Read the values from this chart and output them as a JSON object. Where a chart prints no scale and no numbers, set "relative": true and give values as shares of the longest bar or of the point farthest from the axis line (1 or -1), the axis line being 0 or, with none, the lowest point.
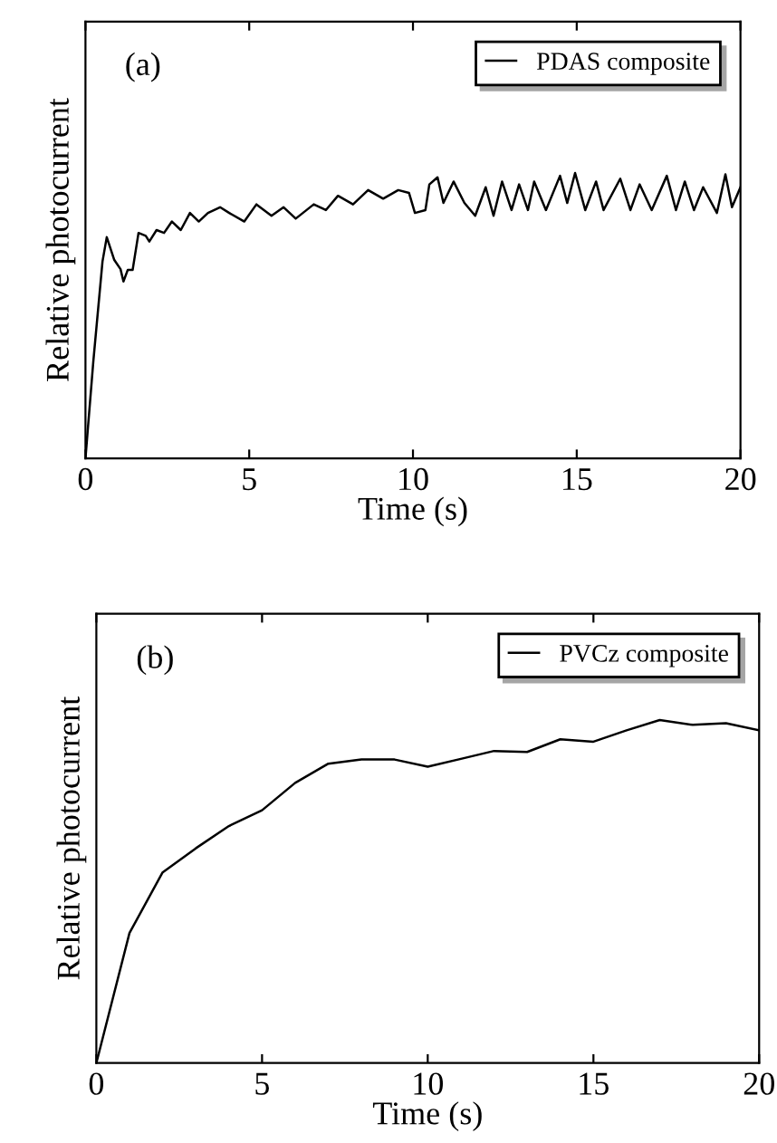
{
  "chart_data": [
    {
      "type": "line",
      "relative": true,
      "xlabel": "Time (s)",
      "ylabel": "Relative photocurrent",
      "annotations": [
        "(a)"
      ],
      "xlim": [
        0,
        20
      ],
      "xticks": [
        0,
        5,
        10,
        15,
        20
      ],
      "tick_labels": "x",
      "legend": "top right",
      "grid": false,
      "series": [
        {
          "name": "PDAS composite",
          "color": "#000000",
          "x": [
            0,
            0.24,
            0.52,
            0.65,
            0.88,
            1.07,
            1.16,
            1.29,
            1.44,
            1.62,
            1.84,
            1.95,
            2.17,
            2.4,
            2.64,
            2.91,
            3.19,
            3.46,
            3.74,
            4.11,
            4.39,
            4.85,
            5.22,
            5.68,
            6.05,
            6.42,
            6.97,
            7.34,
            7.71,
            8.17,
            8.63,
            9.09,
            9.55,
            9.88,
            10.06,
            10.38,
            10.5,
            10.75,
            10.93,
            11.24,
            11.57,
            11.9,
            12.22,
            12.46,
            12.72,
            13.01,
            13.24,
            13.51,
            13.7,
            14.06,
            14.49,
            14.71,
            14.95,
            15.26,
            15.59,
            15.82,
            16.33,
            16.64,
            16.92,
            17.29,
            17.75,
            18.03,
            18.3,
            18.58,
            18.86,
            19.28,
            19.54,
            19.74,
            20
          ],
          "values": [
            0,
            0.34,
            0.69,
            0.775,
            0.695,
            0.663,
            0.62,
            0.66,
            0.66,
            0.79,
            0.78,
            0.76,
            0.8,
            0.79,
            0.83,
            0.8,
            0.86,
            0.83,
            0.86,
            0.88,
            0.86,
            0.83,
            0.89,
            0.85,
            0.88,
            0.84,
            0.89,
            0.87,
            0.92,
            0.89,
            0.94,
            0.91,
            0.94,
            0.93,
            0.86,
            0.87,
            0.96,
            0.985,
            0.895,
            0.97,
            0.895,
            0.85,
            0.95,
            0.85,
            0.97,
            0.87,
            0.96,
            0.87,
            0.97,
            0.87,
            0.99,
            0.895,
            1.0,
            0.87,
            0.97,
            0.87,
            0.98,
            0.87,
            0.96,
            0.87,
            0.99,
            0.87,
            0.97,
            0.87,
            0.95,
            0.86,
            0.995,
            0.88,
            0.95
          ]
        }
      ]
    },
    {
      "type": "line",
      "relative": true,
      "xlabel": "Time (s)",
      "ylabel": "Relative photocurrent",
      "annotations": [
        "(b)"
      ],
      "xlim": [
        0,
        20
      ],
      "xticks": [
        0,
        5,
        10,
        15,
        20
      ],
      "tick_labels": "x",
      "legend": "top right",
      "grid": false,
      "series": [
        {
          "name": "PVCz composite",
          "color": "#000000",
          "x": [
            0,
            1,
            2,
            3,
            4,
            5,
            6,
            7,
            8,
            9,
            10,
            11,
            12,
            13,
            14,
            15,
            16,
            17,
            18,
            19,
            20
          ],
          "values": [
            0,
            0.379,
            0.556,
            0.626,
            0.691,
            0.737,
            0.817,
            0.873,
            0.885,
            0.885,
            0.864,
            0.887,
            0.91,
            0.907,
            0.944,
            0.937,
            0.97,
            1.0,
            0.986,
            0.991,
            0.97
          ]
        }
      ]
    }
  ]
}
